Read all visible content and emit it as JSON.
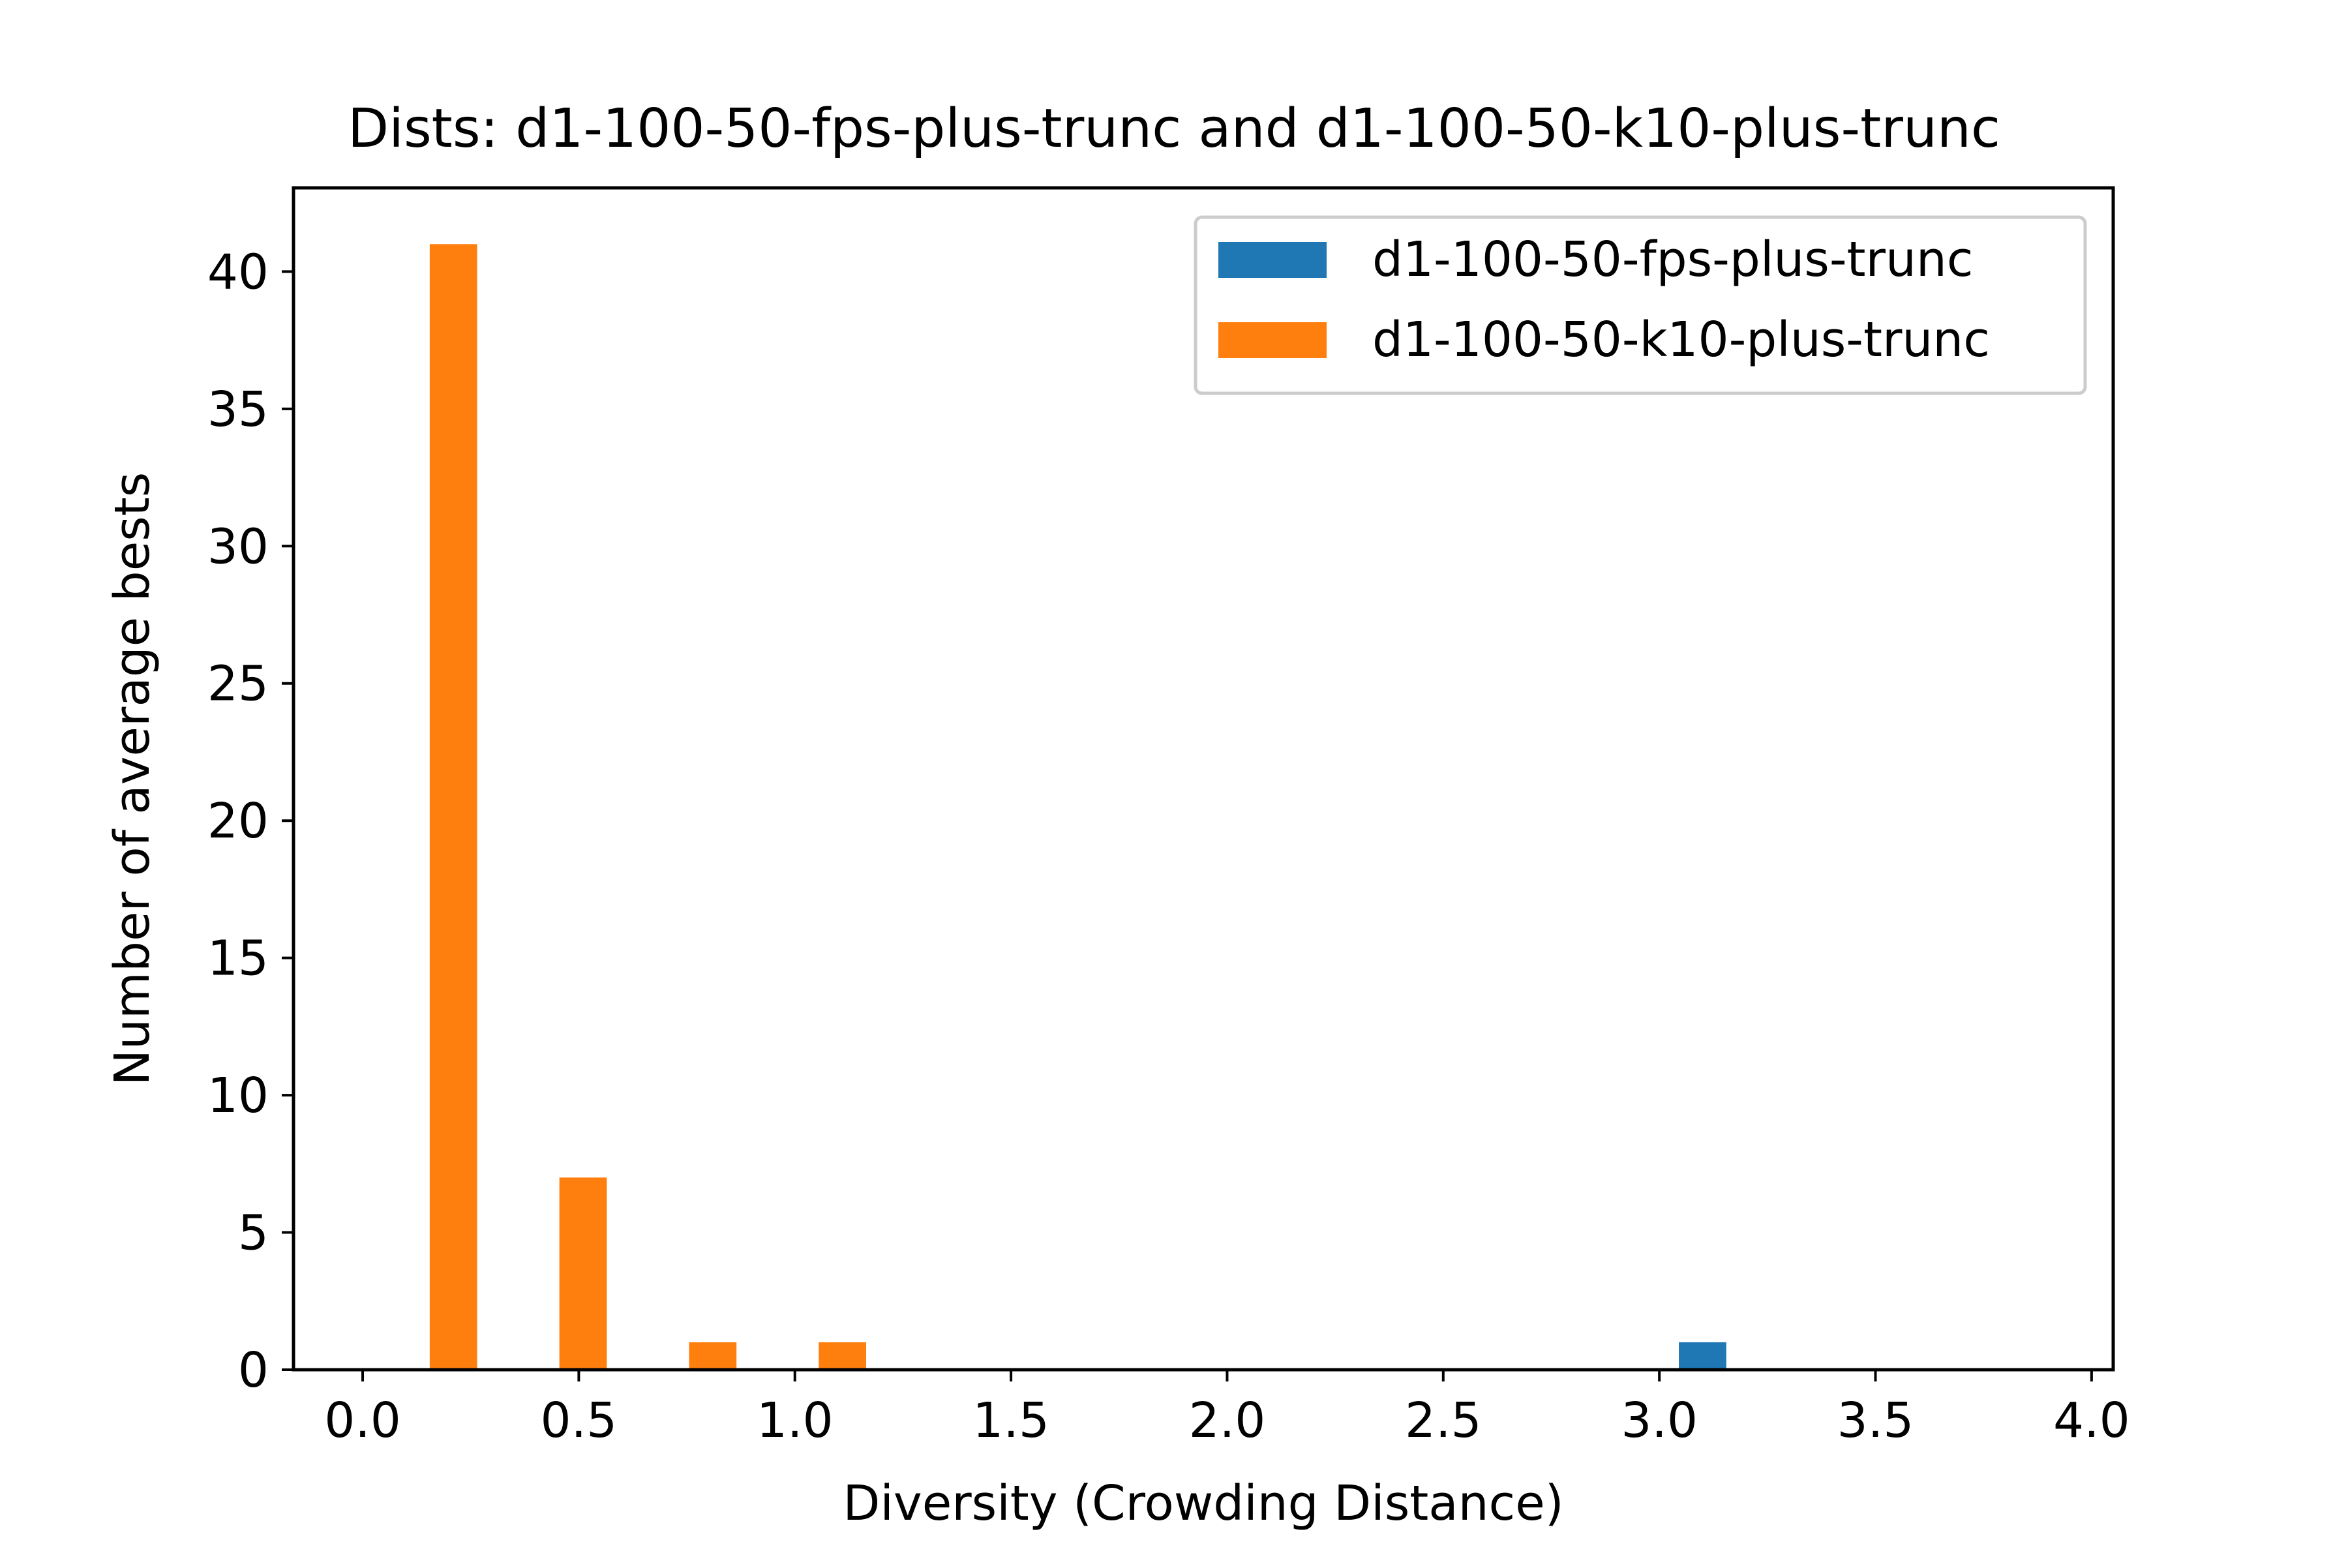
{
  "chart_data": {
    "type": "bar",
    "title": "Dists: d1-100-50-fps-plus-trunc and d1-100-50-k10-plus-trunc",
    "xlabel": "Diversity (Crowding Distance)",
    "ylabel": "Number of average bests",
    "xlim": [
      -0.16,
      4.05
    ],
    "ylim": [
      0,
      43.05
    ],
    "bin_width": 0.3,
    "x_ticks": [
      0.0,
      0.5,
      1.0,
      1.5,
      2.0,
      2.5,
      3.0,
      3.5,
      4.0
    ],
    "x_tick_labels": [
      "0.0",
      "0.5",
      "1.0",
      "1.5",
      "2.0",
      "2.5",
      "3.0",
      "3.5",
      "4.0"
    ],
    "y_ticks": [
      0,
      5,
      10,
      15,
      20,
      25,
      30,
      35,
      40
    ],
    "y_tick_labels": [
      "0",
      "5",
      "10",
      "15",
      "20",
      "25",
      "30",
      "35",
      "40"
    ],
    "legend_position": "top-right",
    "grid": false,
    "series": [
      {
        "name": "d1-100-50-fps-plus-trunc",
        "color": "#1f77b4",
        "bins": [
          {
            "x": 3.1,
            "value": 1
          }
        ]
      },
      {
        "name": "d1-100-50-k10-plus-trunc",
        "color": "#ff7f0e",
        "bins": [
          {
            "x": 0.21,
            "value": 41
          },
          {
            "x": 0.51,
            "value": 7
          },
          {
            "x": 0.81,
            "value": 1
          },
          {
            "x": 1.11,
            "value": 1
          }
        ]
      }
    ]
  }
}
